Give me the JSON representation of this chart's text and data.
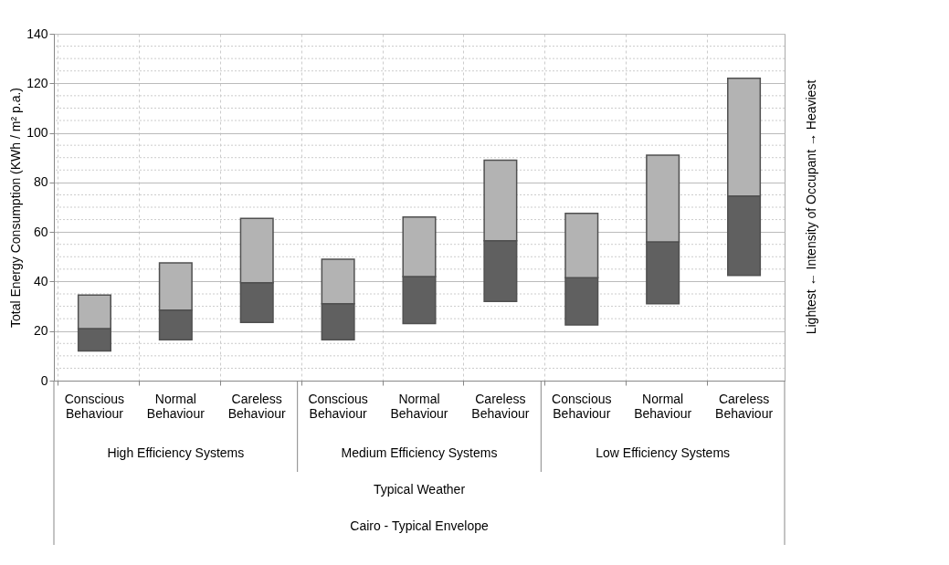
{
  "chart_data": {
    "type": "bar",
    "ylabel": "Total Energy Consumption (KWh / m² p.a.)",
    "y2label": "Lightest  ←  Intensity of Occupant  →  Heaviest",
    "categories": [
      "Conscious Behaviour",
      "Normal Behaviour",
      "Careless Behaviour",
      "Conscious Behaviour",
      "Normal Behaviour",
      "Careless Behaviour",
      "Conscious Behaviour",
      "Normal Behaviour",
      "Careless Behaviour"
    ],
    "series": [
      {
        "color": "#606060",
        "base": [
          12,
          16.5,
          23.5,
          16.5,
          23,
          32,
          22.5,
          31,
          42.5
        ],
        "values": [
          9,
          12,
          16,
          14.5,
          19,
          24.5,
          19,
          25,
          32
        ]
      },
      {
        "color": "#b3b3b3",
        "base": [
          21,
          28.5,
          39.5,
          31,
          42,
          56.5,
          41.5,
          56,
          74.5
        ],
        "values": [
          13.5,
          19,
          26,
          18,
          24,
          32.5,
          26,
          35,
          47.5
        ]
      }
    ],
    "ylim": [
      0,
      140
    ],
    "yticks": [
      0,
      20,
      40,
      60,
      80,
      100,
      120,
      140
    ],
    "grid": true,
    "annotations": [
      "High Efficiency Systems",
      "Medium Efficiency Systems",
      "Low Efficiency Systems",
      "Typical Weather",
      "Cairo - Typical Envelope"
    ]
  }
}
